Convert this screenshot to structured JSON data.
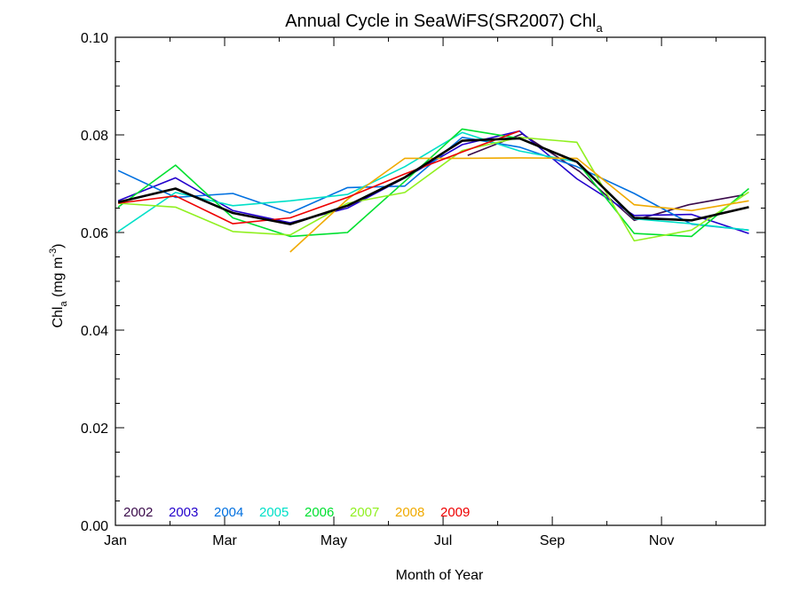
{
  "chart_data": {
    "type": "line",
    "title_main": "Annual Cycle in SeaWiFS(SR2007) Chl",
    "title_sub": "a",
    "ylabel_main": "Chl",
    "ylabel_sub": "a",
    "ylabel_units": " (mg m",
    "ylabel_sup": "-3",
    "ylabel_close": ")",
    "xlabel": "Month of Year",
    "xlim": [
      1,
      12.9
    ],
    "ylim": [
      0.0,
      0.1
    ],
    "x_ticks": [
      {
        "value": 1,
        "label": "Jan"
      },
      {
        "value": 3,
        "label": "Mar"
      },
      {
        "value": 5,
        "label": "May"
      },
      {
        "value": 7,
        "label": "Jul"
      },
      {
        "value": 9,
        "label": "Sep"
      },
      {
        "value": 11,
        "label": "Nov"
      }
    ],
    "y_ticks": [
      {
        "value": 0.0,
        "label": "0.00"
      },
      {
        "value": 0.02,
        "label": "0.02"
      },
      {
        "value": 0.04,
        "label": "0.04"
      },
      {
        "value": 0.06,
        "label": "0.06"
      },
      {
        "value": 0.08,
        "label": "0.08"
      },
      {
        "value": 0.1,
        "label": "0.10"
      }
    ],
    "series": [
      {
        "name": "2002",
        "color": "#3a0a4a",
        "points": [
          [
            7.45,
            0.0758
          ],
          [
            8.45,
            0.0802
          ],
          [
            9.5,
            0.0725
          ],
          [
            10.5,
            0.0625
          ],
          [
            11.5,
            0.0657
          ],
          [
            12.5,
            0.0677
          ]
        ]
      },
      {
        "name": "2003",
        "color": "#2200cc",
        "points": [
          [
            1.05,
            0.0665
          ],
          [
            2.1,
            0.0712
          ],
          [
            3.15,
            0.0645
          ],
          [
            4.2,
            0.062
          ],
          [
            5.25,
            0.065
          ],
          [
            6.3,
            0.0712
          ],
          [
            7.35,
            0.078
          ],
          [
            8.4,
            0.0808
          ],
          [
            9.45,
            0.071
          ],
          [
            10.5,
            0.0635
          ],
          [
            11.55,
            0.0637
          ],
          [
            12.6,
            0.0598
          ]
        ]
      },
      {
        "name": "2004",
        "color": "#0070e0",
        "points": [
          [
            1.05,
            0.0727
          ],
          [
            2.1,
            0.0672
          ],
          [
            3.15,
            0.068
          ],
          [
            4.2,
            0.064
          ],
          [
            5.25,
            0.0692
          ],
          [
            6.3,
            0.0695
          ],
          [
            7.35,
            0.0795
          ],
          [
            8.4,
            0.0775
          ],
          [
            9.45,
            0.0735
          ],
          [
            10.5,
            0.068
          ],
          [
            11.55,
            0.0617
          ],
          [
            12.6,
            0.0605
          ]
        ]
      },
      {
        "name": "2005",
        "color": "#00e0c8",
        "points": [
          [
            1.05,
            0.0602
          ],
          [
            2.1,
            0.0682
          ],
          [
            3.15,
            0.0655
          ],
          [
            4.2,
            0.0665
          ],
          [
            5.25,
            0.0678
          ],
          [
            6.3,
            0.0735
          ],
          [
            7.35,
            0.0805
          ],
          [
            8.4,
            0.0767
          ],
          [
            9.45,
            0.0745
          ],
          [
            10.5,
            0.0628
          ],
          [
            11.55,
            0.0618
          ],
          [
            12.6,
            0.0605
          ]
        ]
      },
      {
        "name": "2006",
        "color": "#00e030",
        "points": [
          [
            1.05,
            0.0652
          ],
          [
            2.1,
            0.0738
          ],
          [
            3.15,
            0.063
          ],
          [
            4.2,
            0.0592
          ],
          [
            5.25,
            0.06
          ],
          [
            6.3,
            0.0705
          ],
          [
            7.35,
            0.0812
          ],
          [
            8.4,
            0.0793
          ],
          [
            9.45,
            0.0745
          ],
          [
            10.5,
            0.0598
          ],
          [
            11.55,
            0.0592
          ],
          [
            12.6,
            0.069
          ]
        ]
      },
      {
        "name": "2007",
        "color": "#90f020",
        "points": [
          [
            1.05,
            0.066
          ],
          [
            2.1,
            0.0652
          ],
          [
            3.15,
            0.0602
          ],
          [
            4.2,
            0.0595
          ],
          [
            5.25,
            0.066
          ],
          [
            6.3,
            0.0682
          ],
          [
            7.35,
            0.0768
          ],
          [
            8.4,
            0.0795
          ],
          [
            9.45,
            0.0785
          ],
          [
            10.5,
            0.0583
          ],
          [
            11.55,
            0.0605
          ],
          [
            12.6,
            0.0683
          ]
        ]
      },
      {
        "name": "2008",
        "color": "#f0aa00",
        "points": [
          [
            4.2,
            0.056
          ],
          [
            5.25,
            0.0668
          ],
          [
            6.3,
            0.0752
          ],
          [
            7.35,
            0.0752
          ],
          [
            8.4,
            0.0753
          ],
          [
            9.45,
            0.0752
          ],
          [
            10.5,
            0.0657
          ],
          [
            11.55,
            0.0645
          ],
          [
            12.6,
            0.0665
          ]
        ]
      },
      {
        "name": "2009",
        "color": "#ee0000",
        "points": [
          [
            1.05,
            0.066
          ],
          [
            2.1,
            0.0675
          ],
          [
            3.15,
            0.0618
          ],
          [
            4.2,
            0.063
          ],
          [
            5.25,
            0.0672
          ],
          [
            6.3,
            0.072
          ],
          [
            7.35,
            0.0765
          ],
          [
            8.4,
            0.0808
          ]
        ]
      }
    ],
    "mean": {
      "color": "#000000",
      "points": [
        [
          1.05,
          0.0662
        ],
        [
          2.1,
          0.069
        ],
        [
          3.15,
          0.064
        ],
        [
          4.2,
          0.0617
        ],
        [
          5.25,
          0.0655
        ],
        [
          6.3,
          0.0713
        ],
        [
          7.35,
          0.0788
        ],
        [
          8.4,
          0.0793
        ],
        [
          9.45,
          0.0745
        ],
        [
          10.5,
          0.063
        ],
        [
          11.55,
          0.0625
        ],
        [
          12.6,
          0.0652
        ]
      ]
    },
    "grid": false,
    "legend_position": "bottom-left"
  }
}
